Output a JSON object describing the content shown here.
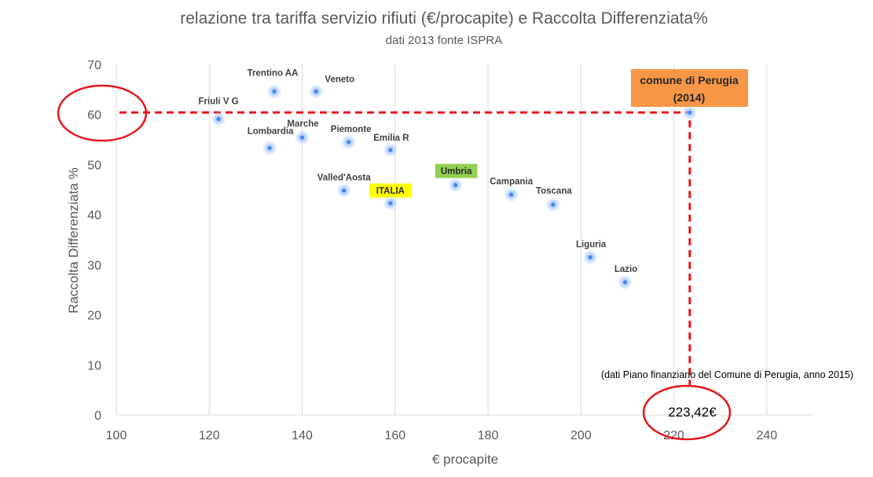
{
  "chart_data": {
    "type": "scatter",
    "title": "relazione tra tariffa servizio rifiuti (€/procapite) e Raccolta Differenziata%",
    "subtitle": "dati 2013 fonte ISPRA",
    "xlabel": "€ procapite",
    "ylabel": "Raccolta Differenziata %",
    "xlim": [
      100,
      250
    ],
    "ylim": [
      0,
      70
    ],
    "xticks": [
      "100",
      "120",
      "140",
      "160",
      "180",
      "200",
      "220",
      "240"
    ],
    "yticks": [
      "0",
      "10",
      "20",
      "30",
      "40",
      "50",
      "60",
      "70"
    ],
    "grid": "vertical",
    "points": [
      {
        "label": "Trentino AA",
        "x": 134,
        "y": 64.6
      },
      {
        "label": "Veneto",
        "x": 143,
        "y": 64.6
      },
      {
        "label": "Friuli V G",
        "x": 122,
        "y": 59.1
      },
      {
        "label": "Marche",
        "x": 140,
        "y": 55.4
      },
      {
        "label": "Lombardia",
        "x": 133,
        "y": 53.3
      },
      {
        "label": "Piemonte",
        "x": 150,
        "y": 54.5
      },
      {
        "label": "Emilia R",
        "x": 159,
        "y": 52.9
      },
      {
        "label": "Valled'Aosta",
        "x": 149,
        "y": 44.8
      },
      {
        "label": "ITALIA",
        "x": 159,
        "y": 42.3
      },
      {
        "label": "Umbria",
        "x": 173,
        "y": 45.9
      },
      {
        "label": "Campania",
        "x": 185,
        "y": 44.0
      },
      {
        "label": "Toscana",
        "x": 194,
        "y": 42.0
      },
      {
        "label": "Liguria",
        "x": 202,
        "y": 31.5
      },
      {
        "label": "Lazio",
        "x": 209.5,
        "y": 26.5
      },
      {
        "label": "comune di Perugia (2014)",
        "x": 223.42,
        "y": 60.4
      }
    ],
    "highlights": {
      "ITALIA": "#ffff00",
      "Umbria": "#92d050",
      "comune di Perugia (2014)": "#f79646"
    },
    "annotations": {
      "perugia_label_line1": "comune di Perugia",
      "perugia_label_line2": "(2014)",
      "note": "(dati Piano finanziario del Comune di Perugia, anno 2015)",
      "x_value": "223,42€"
    },
    "colors": {
      "marker": "#4a86e8",
      "guide": "#e8141a",
      "text": "#595959",
      "grid": "#d9d9d9"
    }
  }
}
